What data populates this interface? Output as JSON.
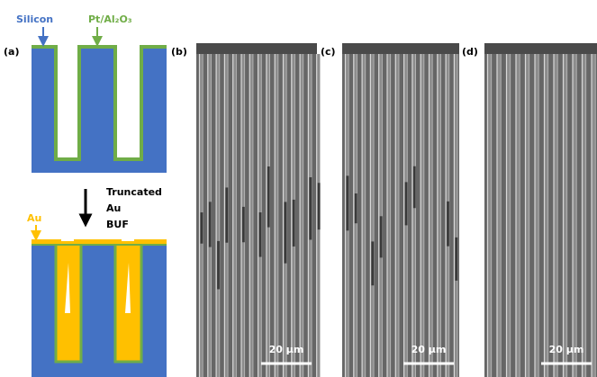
{
  "panels": {
    "a": "(a)",
    "b": "(b)",
    "c": "(c)",
    "d": "(d)"
  },
  "annotations": {
    "silicon": "Silicon",
    "pt_al2o3": "Pt/Al₂O₃",
    "au": "Au",
    "process": [
      "Truncated",
      "Au",
      "BUF"
    ]
  },
  "scale_bars": [
    "20 µm",
    "20 µm",
    "20 µm"
  ]
}
